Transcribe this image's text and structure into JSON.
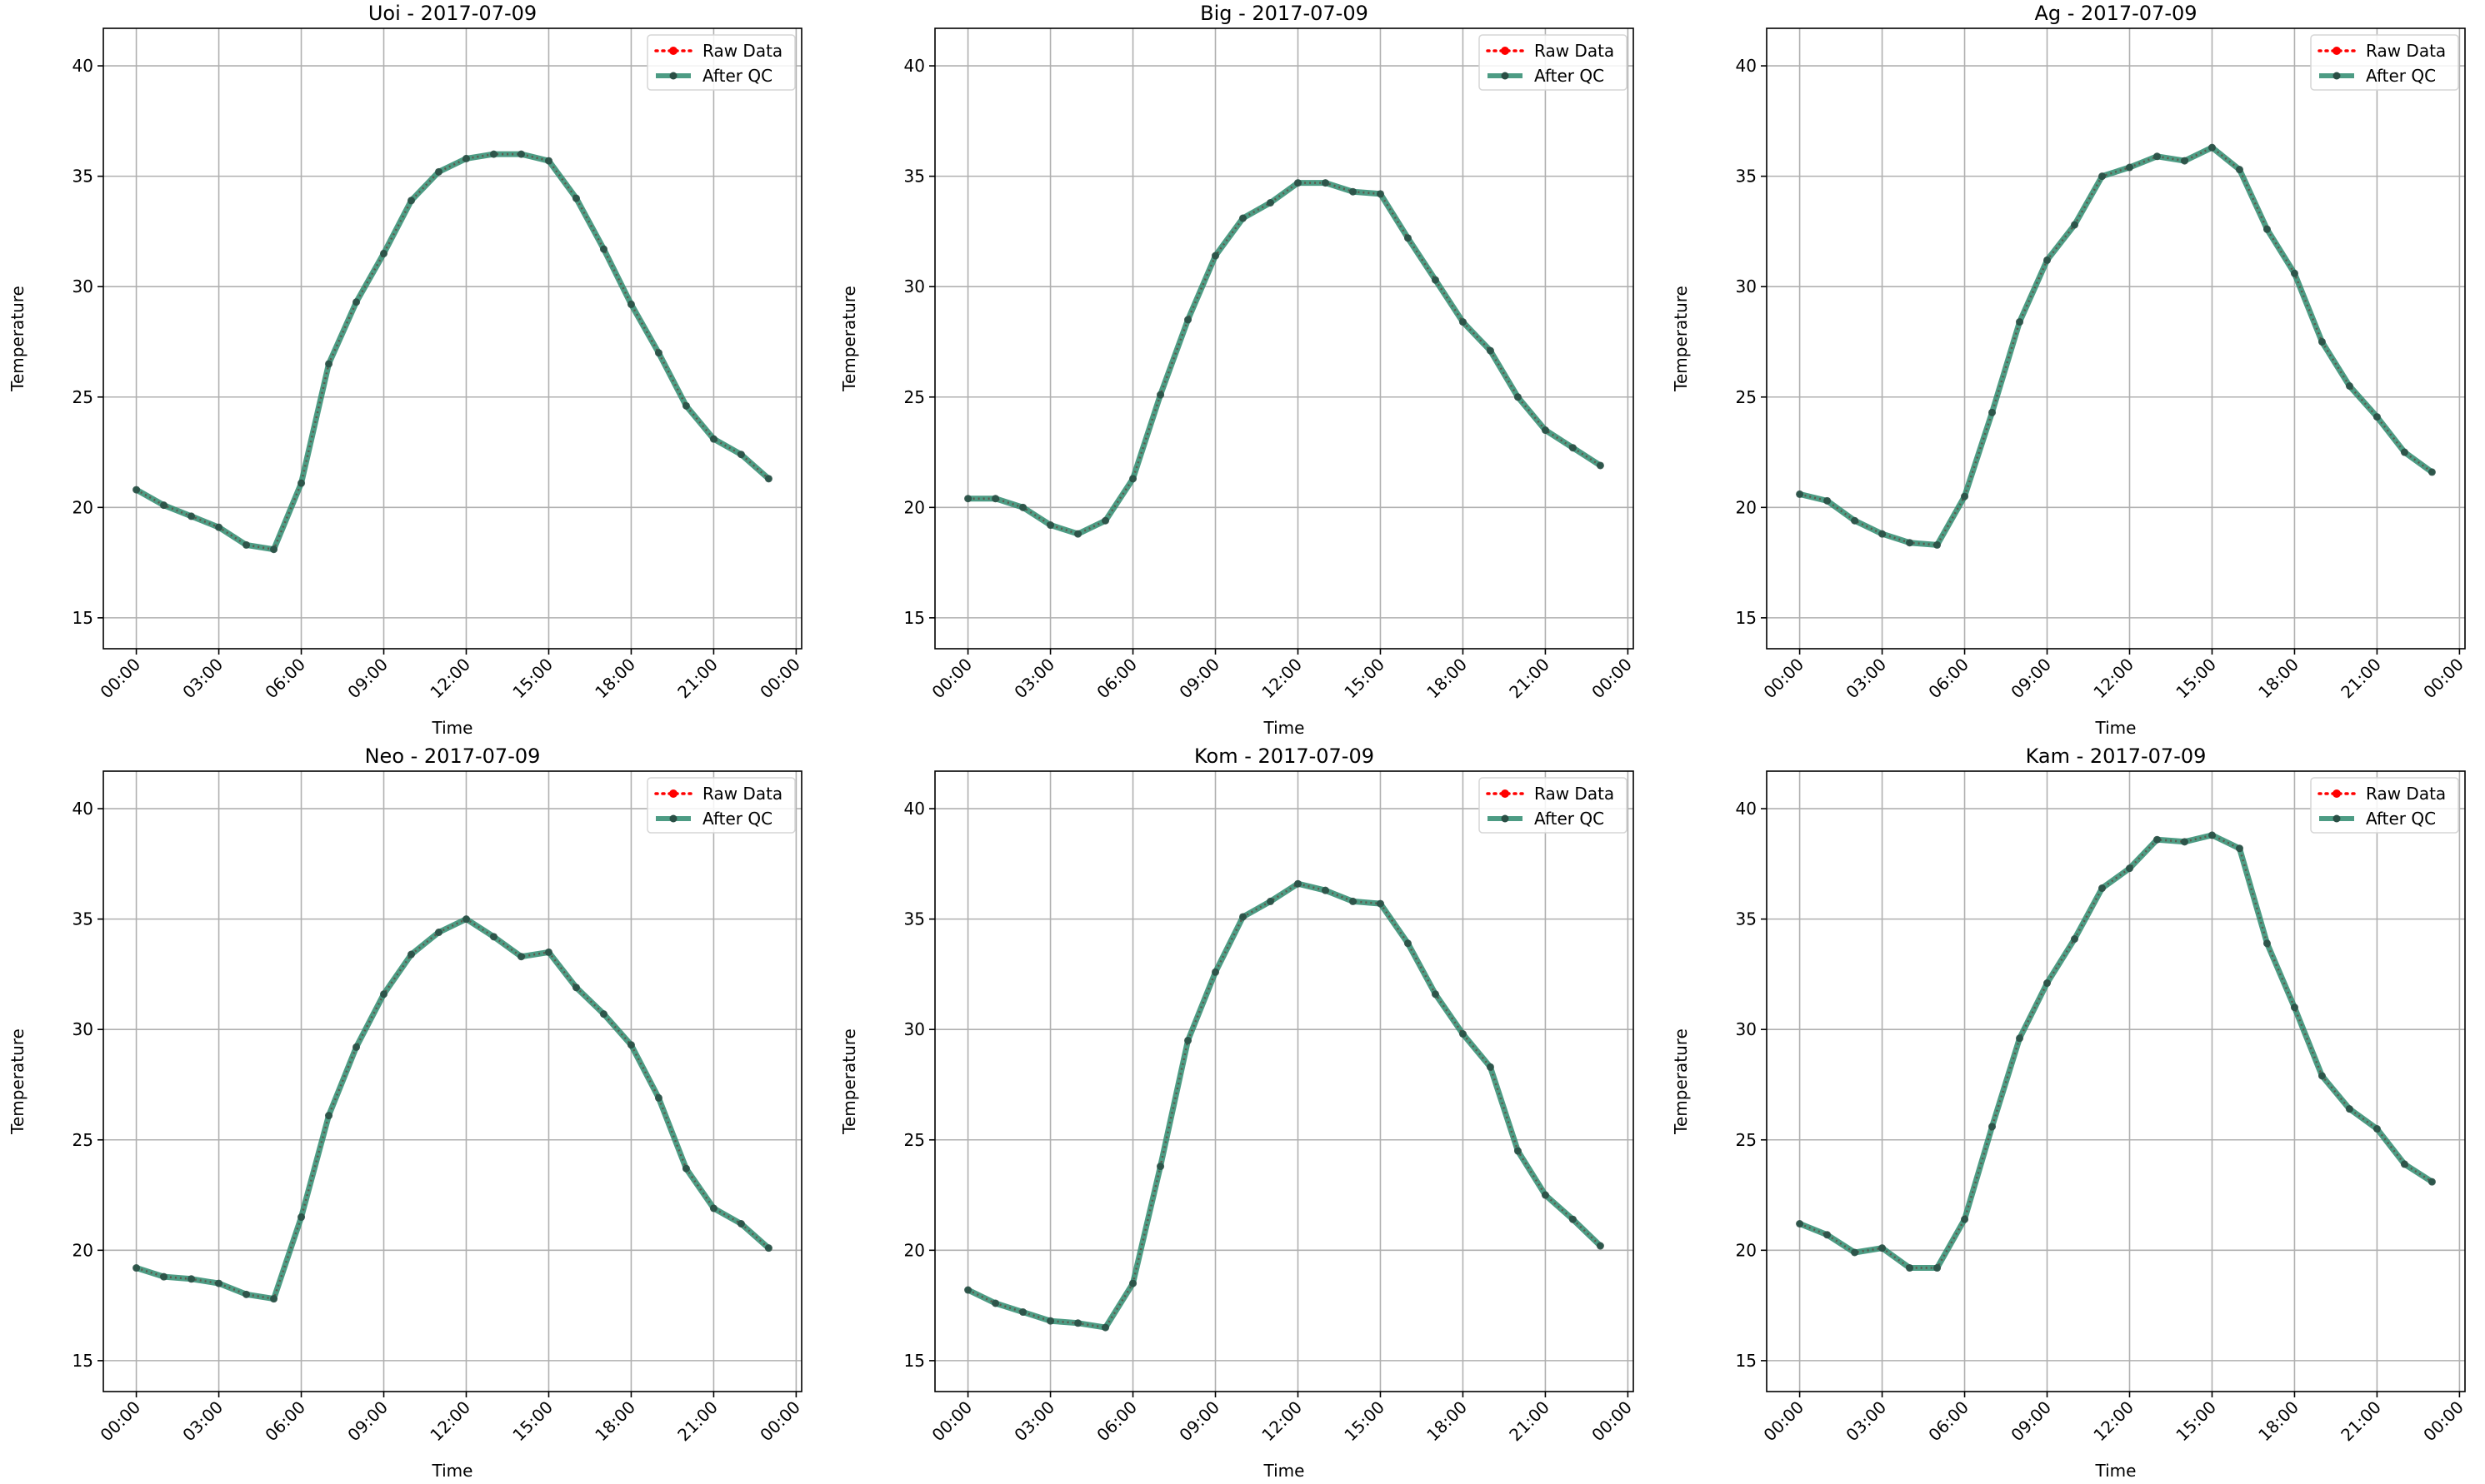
{
  "legend_placement": "top-right",
  "colors": {
    "raw": "#ff0000",
    "qc": "#2e8b6e",
    "grid": "#b0b0b0",
    "axis": "#000000"
  },
  "chart_data": [
    {
      "type": "line",
      "title": "Uoi - 2017-07-09",
      "xlabel": "Time",
      "ylabel": "Temperature",
      "xticks": [
        "00:00",
        "03:00",
        "06:00",
        "09:00",
        "12:00",
        "15:00",
        "18:00",
        "21:00",
        "00:00"
      ],
      "yticks": [
        15,
        20,
        25,
        30,
        35,
        40
      ],
      "xlim": [
        -1.2,
        24.2
      ],
      "ylim": [
        13.6,
        41.7
      ],
      "grid": true,
      "legend": "top-right",
      "x": [
        0,
        1,
        2,
        3,
        4,
        5,
        6,
        7,
        8,
        9,
        10,
        11,
        12,
        13,
        14,
        15,
        16,
        17,
        18,
        19,
        20,
        21,
        22,
        23
      ],
      "series": [
        {
          "name": "Raw Data",
          "style": "dotted",
          "values": [
            20.8,
            20.1,
            19.6,
            19.1,
            18.3,
            18.1,
            21.1,
            26.5,
            29.3,
            31.5,
            33.9,
            35.2,
            35.8,
            36.0,
            36.0,
            35.7,
            34.0,
            31.7,
            29.2,
            27.0,
            24.6,
            23.1,
            22.4,
            21.3
          ]
        },
        {
          "name": "After QC",
          "style": "solid",
          "values": [
            20.8,
            20.1,
            19.6,
            19.1,
            18.3,
            18.1,
            21.1,
            26.5,
            29.3,
            31.5,
            33.9,
            35.2,
            35.8,
            36.0,
            36.0,
            35.7,
            34.0,
            31.7,
            29.2,
            27.0,
            24.6,
            23.1,
            22.4,
            21.3
          ]
        }
      ]
    },
    {
      "type": "line",
      "title": "Big - 2017-07-09",
      "xlabel": "Time",
      "ylabel": "Temperature",
      "xticks": [
        "00:00",
        "03:00",
        "06:00",
        "09:00",
        "12:00",
        "15:00",
        "18:00",
        "21:00",
        "00:00"
      ],
      "yticks": [
        15,
        20,
        25,
        30,
        35,
        40
      ],
      "xlim": [
        -1.2,
        24.2
      ],
      "ylim": [
        13.6,
        41.7
      ],
      "grid": true,
      "legend": "top-right",
      "x": [
        0,
        1,
        2,
        3,
        4,
        5,
        6,
        7,
        8,
        9,
        10,
        11,
        12,
        13,
        14,
        15,
        16,
        17,
        18,
        19,
        20,
        21,
        22,
        23
      ],
      "series": [
        {
          "name": "Raw Data",
          "style": "dotted",
          "values": [
            20.4,
            20.4,
            20.0,
            19.2,
            18.8,
            19.4,
            21.3,
            25.1,
            28.5,
            31.4,
            33.1,
            33.8,
            34.7,
            34.7,
            34.3,
            34.2,
            32.2,
            30.3,
            28.4,
            27.1,
            25.0,
            23.5,
            22.7,
            21.9
          ]
        },
        {
          "name": "After QC",
          "style": "solid",
          "values": [
            20.4,
            20.4,
            20.0,
            19.2,
            18.8,
            19.4,
            21.3,
            25.1,
            28.5,
            31.4,
            33.1,
            33.8,
            34.7,
            34.7,
            34.3,
            34.2,
            32.2,
            30.3,
            28.4,
            27.1,
            25.0,
            23.5,
            22.7,
            21.9
          ]
        }
      ]
    },
    {
      "type": "line",
      "title": "Ag - 2017-07-09",
      "xlabel": "Time",
      "ylabel": "Temperature",
      "xticks": [
        "00:00",
        "03:00",
        "06:00",
        "09:00",
        "12:00",
        "15:00",
        "18:00",
        "21:00",
        "00:00"
      ],
      "yticks": [
        15,
        20,
        25,
        30,
        35,
        40
      ],
      "xlim": [
        -1.2,
        24.2
      ],
      "ylim": [
        13.6,
        41.7
      ],
      "grid": true,
      "legend": "top-right",
      "x": [
        0,
        1,
        2,
        3,
        4,
        5,
        6,
        7,
        8,
        9,
        10,
        11,
        12,
        13,
        14,
        15,
        16,
        17,
        18,
        19,
        20,
        21,
        22,
        23
      ],
      "series": [
        {
          "name": "Raw Data",
          "style": "dotted",
          "values": [
            20.6,
            20.3,
            19.4,
            18.8,
            18.4,
            18.3,
            20.5,
            24.3,
            28.4,
            31.2,
            32.8,
            35.0,
            35.4,
            35.9,
            35.7,
            36.3,
            35.3,
            32.6,
            30.6,
            27.5,
            25.5,
            24.1,
            22.5,
            21.6
          ]
        },
        {
          "name": "After QC",
          "style": "solid",
          "values": [
            20.6,
            20.3,
            19.4,
            18.8,
            18.4,
            18.3,
            20.5,
            24.3,
            28.4,
            31.2,
            32.8,
            35.0,
            35.4,
            35.9,
            35.7,
            36.3,
            35.3,
            32.6,
            30.6,
            27.5,
            25.5,
            24.1,
            22.5,
            21.6
          ]
        }
      ]
    },
    {
      "type": "line",
      "title": "Neo - 2017-07-09",
      "xlabel": "Time",
      "ylabel": "Temperature",
      "xticks": [
        "00:00",
        "03:00",
        "06:00",
        "09:00",
        "12:00",
        "15:00",
        "18:00",
        "21:00",
        "00:00"
      ],
      "yticks": [
        15,
        20,
        25,
        30,
        35,
        40
      ],
      "xlim": [
        -1.2,
        24.2
      ],
      "ylim": [
        13.6,
        41.7
      ],
      "grid": true,
      "legend": "top-right",
      "x": [
        0,
        1,
        2,
        3,
        4,
        5,
        6,
        7,
        8,
        9,
        10,
        11,
        12,
        13,
        14,
        15,
        16,
        17,
        18,
        19,
        20,
        21,
        22,
        23
      ],
      "series": [
        {
          "name": "Raw Data",
          "style": "dotted",
          "values": [
            19.2,
            18.8,
            18.7,
            18.5,
            18.0,
            17.8,
            21.5,
            26.1,
            29.2,
            31.6,
            33.4,
            34.4,
            35.0,
            34.2,
            33.3,
            33.5,
            31.9,
            30.7,
            29.3,
            26.9,
            23.7,
            21.9,
            21.2,
            20.1
          ]
        },
        {
          "name": "After QC",
          "style": "solid",
          "values": [
            19.2,
            18.8,
            18.7,
            18.5,
            18.0,
            17.8,
            21.5,
            26.1,
            29.2,
            31.6,
            33.4,
            34.4,
            35.0,
            34.2,
            33.3,
            33.5,
            31.9,
            30.7,
            29.3,
            26.9,
            23.7,
            21.9,
            21.2,
            20.1
          ]
        }
      ]
    },
    {
      "type": "line",
      "title": "Kom - 2017-07-09",
      "xlabel": "Time",
      "ylabel": "Temperature",
      "xticks": [
        "00:00",
        "03:00",
        "06:00",
        "09:00",
        "12:00",
        "15:00",
        "18:00",
        "21:00",
        "00:00"
      ],
      "yticks": [
        15,
        20,
        25,
        30,
        35,
        40
      ],
      "xlim": [
        -1.2,
        24.2
      ],
      "ylim": [
        13.6,
        41.7
      ],
      "grid": true,
      "legend": "top-right",
      "x": [
        0,
        1,
        2,
        3,
        4,
        5,
        6,
        7,
        8,
        9,
        10,
        11,
        12,
        13,
        14,
        15,
        16,
        17,
        18,
        19,
        20,
        21,
        22,
        23
      ],
      "series": [
        {
          "name": "Raw Data",
          "style": "dotted",
          "values": [
            18.2,
            17.6,
            17.2,
            16.8,
            16.7,
            16.5,
            18.5,
            23.8,
            29.5,
            32.6,
            35.1,
            35.8,
            36.6,
            36.3,
            35.8,
            35.7,
            33.9,
            31.6,
            29.8,
            28.3,
            24.5,
            22.5,
            21.4,
            20.2
          ]
        },
        {
          "name": "After QC",
          "style": "solid",
          "values": [
            18.2,
            17.6,
            17.2,
            16.8,
            16.7,
            16.5,
            18.5,
            23.8,
            29.5,
            32.6,
            35.1,
            35.8,
            36.6,
            36.3,
            35.8,
            35.7,
            33.9,
            31.6,
            29.8,
            28.3,
            24.5,
            22.5,
            21.4,
            20.2
          ]
        }
      ]
    },
    {
      "type": "line",
      "title": "Kam - 2017-07-09",
      "xlabel": "Time",
      "ylabel": "Temperature",
      "xticks": [
        "00:00",
        "03:00",
        "06:00",
        "09:00",
        "12:00",
        "15:00",
        "18:00",
        "21:00",
        "00:00"
      ],
      "yticks": [
        15,
        20,
        25,
        30,
        35,
        40
      ],
      "xlim": [
        -1.2,
        24.2
      ],
      "ylim": [
        13.6,
        41.7
      ],
      "grid": true,
      "legend": "top-right",
      "x": [
        0,
        1,
        2,
        3,
        4,
        5,
        6,
        7,
        8,
        9,
        10,
        11,
        12,
        13,
        14,
        15,
        16,
        17,
        18,
        19,
        20,
        21,
        22,
        23
      ],
      "series": [
        {
          "name": "Raw Data",
          "style": "dotted",
          "values": [
            21.2,
            20.7,
            19.9,
            20.1,
            19.2,
            19.2,
            21.4,
            25.6,
            29.6,
            32.1,
            34.1,
            36.4,
            37.3,
            38.6,
            38.5,
            38.8,
            38.2,
            33.9,
            31.0,
            27.9,
            26.4,
            25.5,
            23.9,
            23.1
          ]
        },
        {
          "name": "After QC",
          "style": "solid",
          "values": [
            21.2,
            20.7,
            19.9,
            20.1,
            19.2,
            19.2,
            21.4,
            25.6,
            29.6,
            32.1,
            34.1,
            36.4,
            37.3,
            38.6,
            38.5,
            38.8,
            38.2,
            33.9,
            31.0,
            27.9,
            26.4,
            25.5,
            23.9,
            23.1
          ]
        }
      ]
    }
  ]
}
